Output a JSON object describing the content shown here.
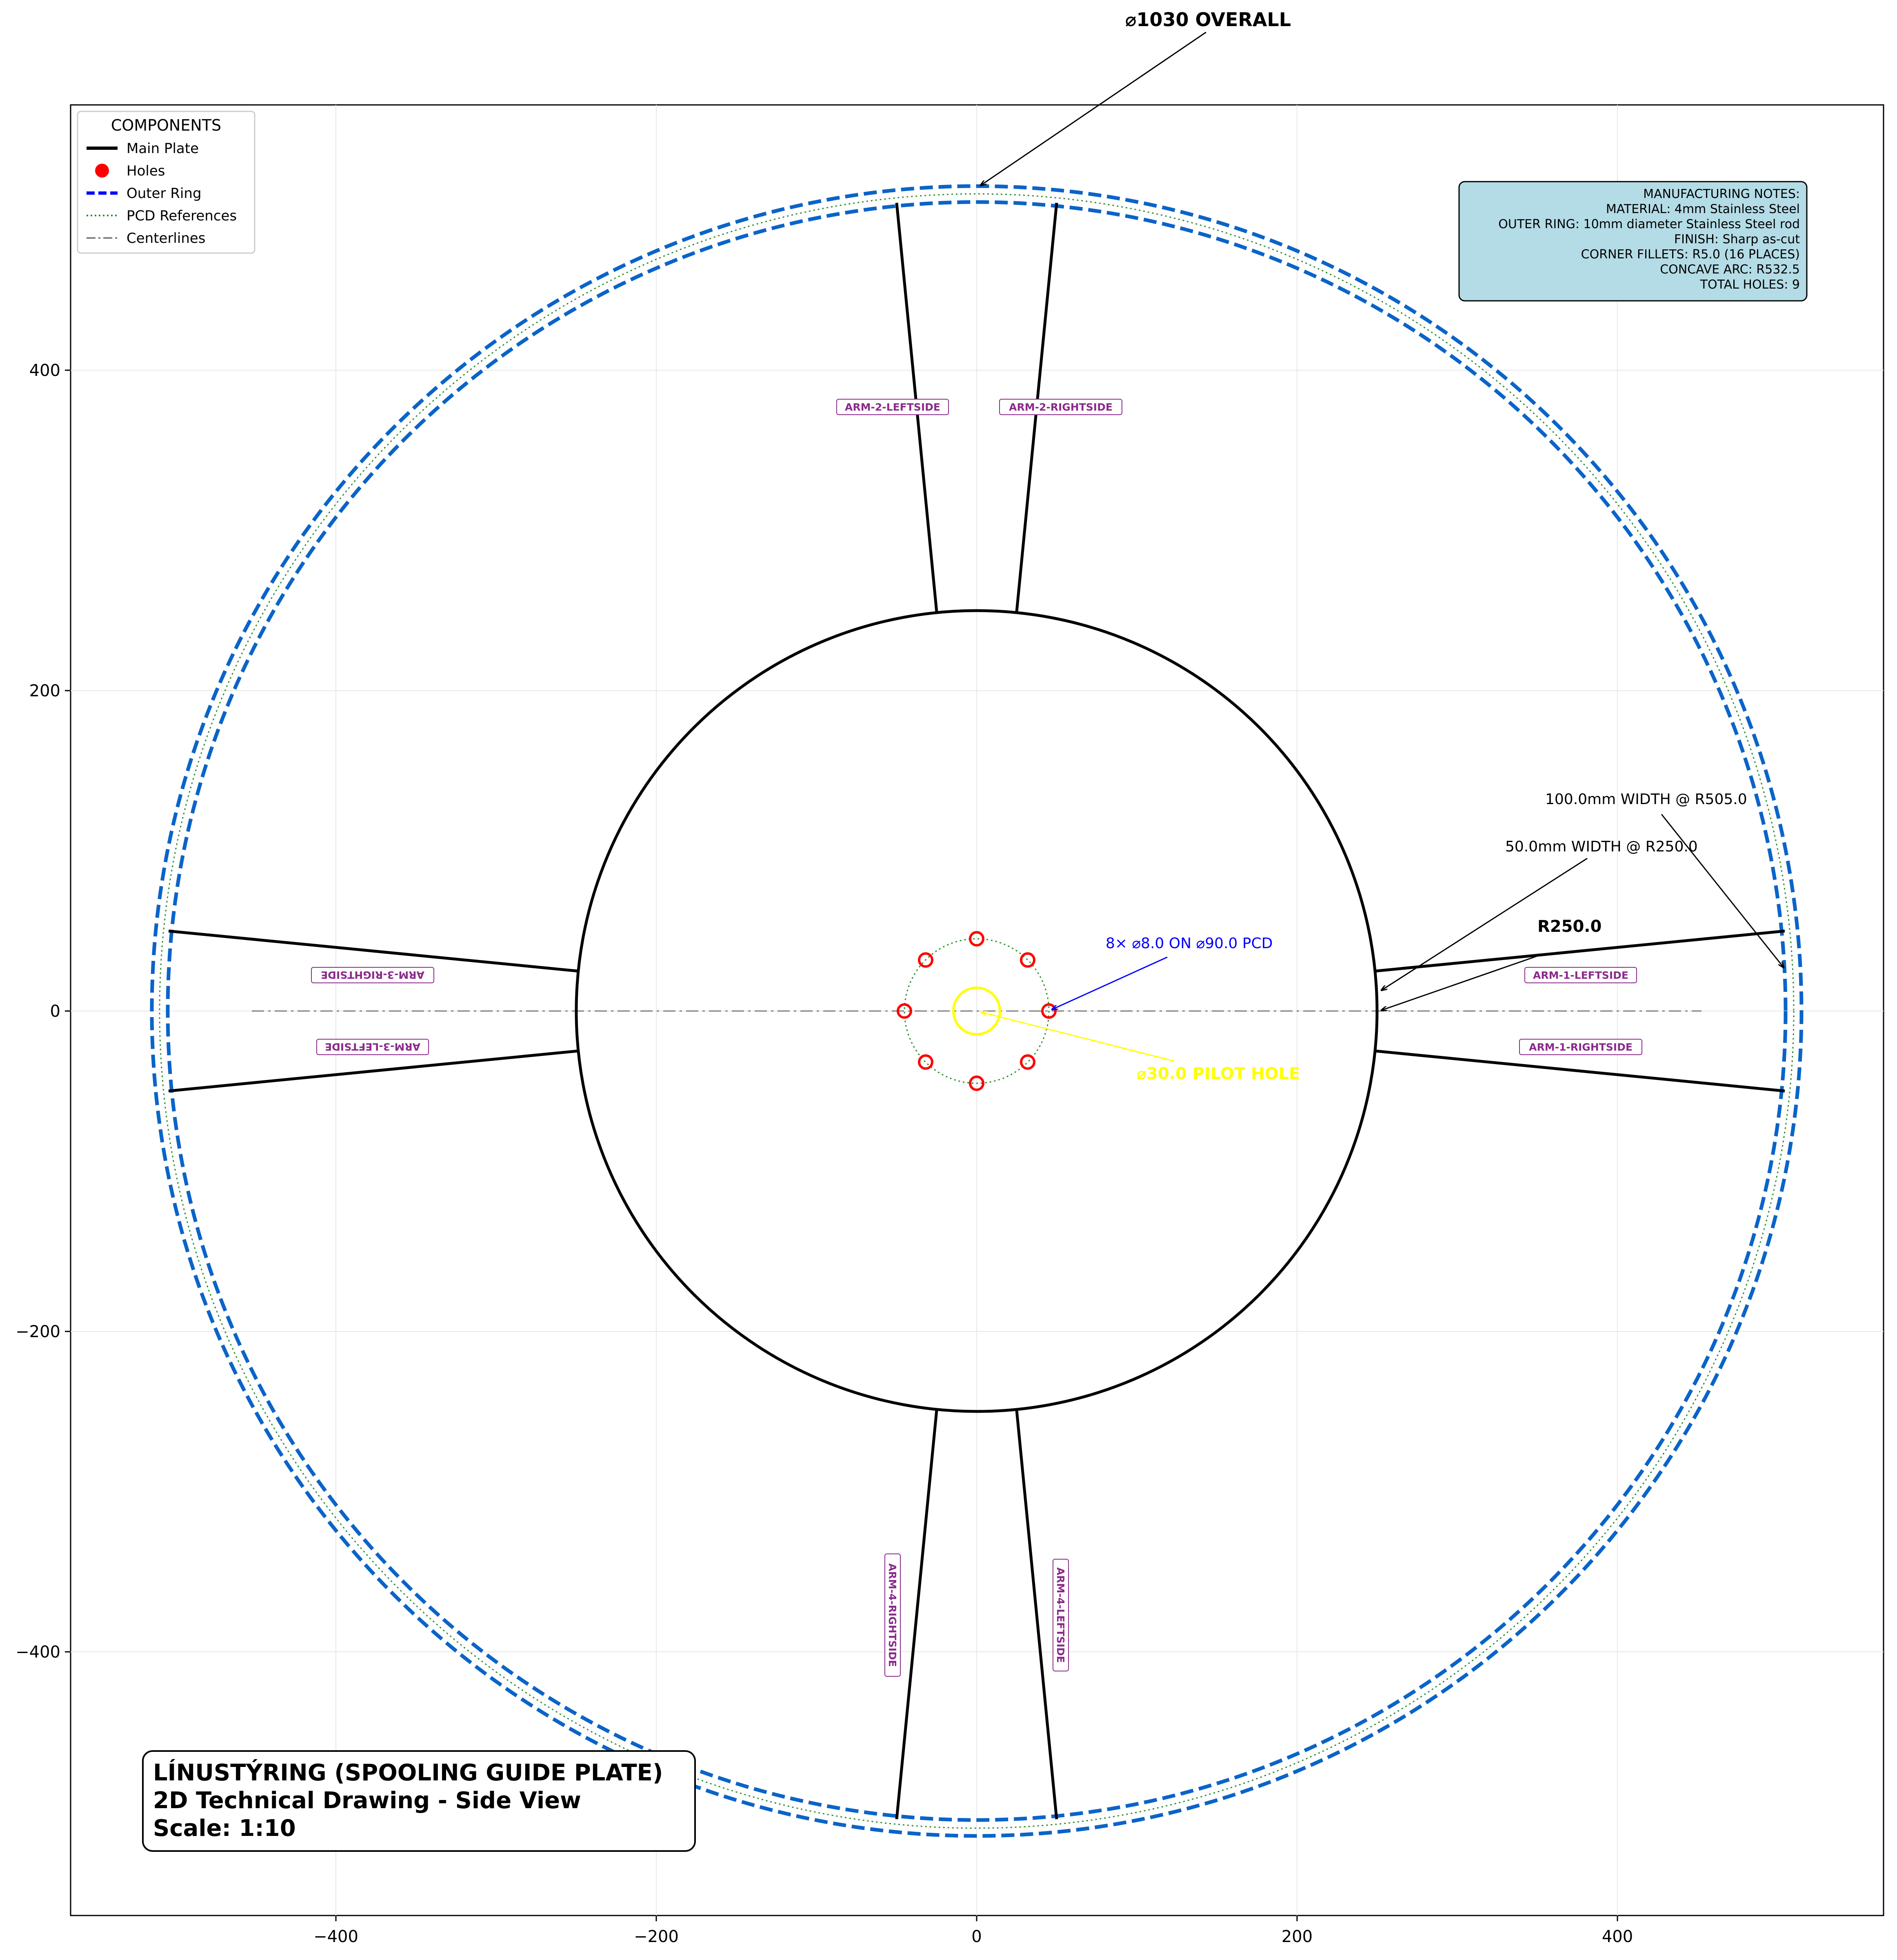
{
  "title_block": {
    "line1": "LÍNUSTÝRING (SPOOLING GUIDE PLATE)",
    "line2": "2D Technical Drawing - Side View",
    "line3": "Scale: 1:10"
  },
  "legend": {
    "title": "COMPONENTS",
    "items": [
      {
        "label": "Main Plate",
        "color": "#000000",
        "style": "solid"
      },
      {
        "label": "Holes",
        "color": "#ff0000",
        "style": "marker"
      },
      {
        "label": "Outer Ring",
        "color": "#0000ff",
        "style": "dashed"
      },
      {
        "label": "PCD References",
        "color": "#2e8b2e",
        "style": "dotted"
      },
      {
        "label": "Centerlines",
        "color": "#808080",
        "style": "dashdot"
      }
    ]
  },
  "notes": [
    "MANUFACTURING NOTES:",
    "MATERIAL: 4mm Stainless Steel",
    "OUTER RING: 10mm diameter Stainless Steel rod",
    "FINISH: Sharp as-cut",
    "CORNER FILLETS: R5.0 (16 PLACES)",
    "CONCAVE ARC: R532.5",
    "TOTAL HOLES: 9"
  ],
  "annotations": {
    "overall": "⌀1030 OVERALL",
    "width_outer": "100.0mm WIDTH @ R505.0",
    "width_inner": "50.0mm WIDTH @ R250.0",
    "radius": "R250.0",
    "pcd": "8× ⌀8.0 ON ⌀90.0 PCD",
    "pilot": "⌀30.0 PILOT HOLE"
  },
  "arm_labels": {
    "arm1_left": "ARM-1-LEFTSIDE",
    "arm1_right": "ARM-1-RIGHTSIDE",
    "arm2_left": "ARM-2-LEFTSIDE",
    "arm2_right": "ARM-2-RIGHTSIDE",
    "arm3_right": "ARM-3-RIGHTSIDE",
    "arm3_left": "ARM-3-LEFTSIDE",
    "arm4_right": "ARM-4-RIGHTSIDE",
    "arm4_left": "ARM-4-LEFTSIDE"
  },
  "axes": {
    "x_ticks": [
      "−400",
      "−200",
      "0",
      "200",
      "400"
    ],
    "y_ticks": [
      "400",
      "200",
      "0",
      "−200",
      "−400"
    ]
  },
  "colors": {
    "plate": "#000000",
    "outer_ring": "#0a64c8",
    "pcd": "#2e8b2e",
    "holes": "#ff0000",
    "pilot": "#ffff00",
    "notes_bg": "#b4dce6",
    "arm_label": "#8a2a8a",
    "pcd_annotation": "#0000ff"
  },
  "geometry": {
    "hub_radius": 250,
    "outer_ring_radii": [
      505,
      510,
      515
    ],
    "hole_pcd_diameter": 90,
    "hole_diameter": 8,
    "hole_count": 8,
    "pilot_diameter": 30,
    "arm_width_inner": 50,
    "arm_width_outer": 100,
    "arm_count": 4
  }
}
